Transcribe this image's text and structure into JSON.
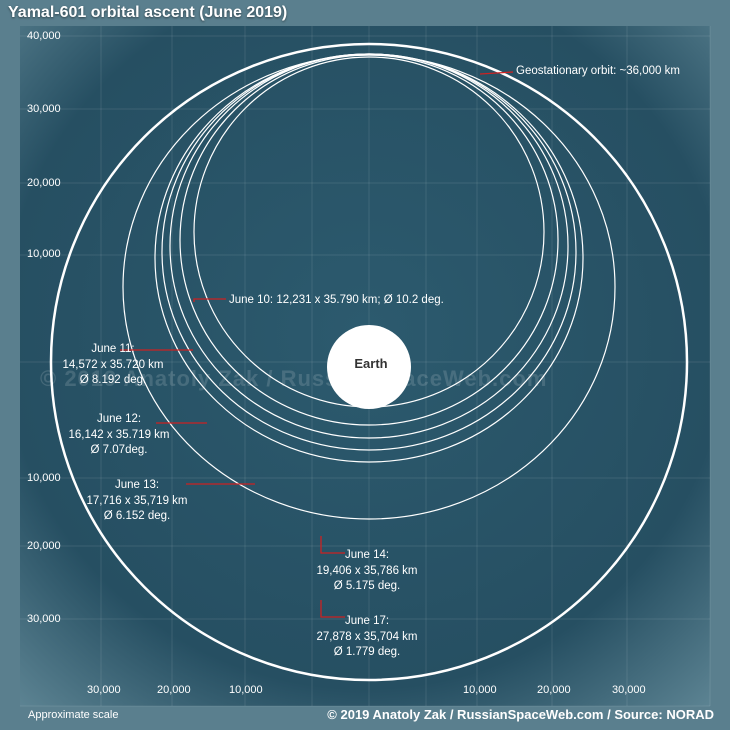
{
  "title": "Yamal-601 orbital ascent (June 2019)",
  "footer": {
    "scale_note": "Approximate scale",
    "credit": "© 2019 Anatoly Zak / RussianSpaceWeb.com / Source: NORAD"
  },
  "watermark": "© 2019 Anatoly Zak / RussianSpaceWeb.com",
  "earth_label": "Earth",
  "geo_label": "Geostationary orbit: ~36,000 km",
  "axis": {
    "y_ticks_upper": [
      "40,000",
      "30,000",
      "20,000",
      "10,000"
    ],
    "y_ticks_lower": [
      "10,000",
      "20,000",
      "30,000"
    ],
    "x_ticks_left": [
      "30,000",
      "20,000",
      "10,000"
    ],
    "x_ticks_right": [
      "10,000",
      "20,000",
      "30,000"
    ]
  },
  "orbits": [
    {
      "date": "June 10",
      "lines": [
        "June 10: 12,231 x 35.790 km; Ø 10.2 deg."
      ]
    },
    {
      "date": "June 11",
      "lines": [
        "June 11:",
        "14,572 x 35.720 km",
        "Ø 8.192 deg."
      ]
    },
    {
      "date": "June 12",
      "lines": [
        "June 12:",
        "16,142 x 35.719 km",
        "Ø 7.07deg."
      ]
    },
    {
      "date": "June 13",
      "lines": [
        "June 13:",
        "17,716 x 35,719 km",
        "Ø 6.152 deg."
      ]
    },
    {
      "date": "June 14",
      "lines": [
        "June 14:",
        "19,406 x 35,786 km",
        "Ø 5.175 deg."
      ]
    },
    {
      "date": "June 17",
      "lines": [
        "June 17:",
        "27,878 x 35,704 km",
        "Ø 1.779 deg."
      ]
    }
  ],
  "colors": {
    "background": "#2a5468",
    "orbit": "#ffffff",
    "leader": "#cc2222",
    "earth": "#ffffff"
  }
}
